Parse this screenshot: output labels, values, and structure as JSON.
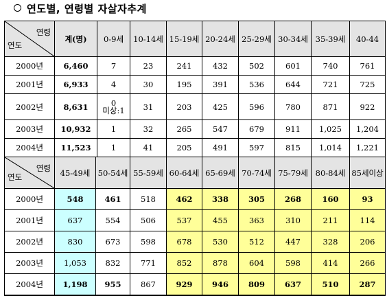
{
  "title": "연도별, 연령별 자살자추계",
  "table1": {
    "corner_top": "연령",
    "corner_bottom": "연도",
    "headers": [
      "계(명)",
      "0-9세",
      "10-14세",
      "15-19세",
      "20-24세",
      "25-29세",
      "30-34세",
      "35-39세",
      "40-44"
    ],
    "rows": [
      {
        "year": "2000년",
        "cells": [
          "6,460",
          "7",
          "23",
          "241",
          "432",
          "502",
          "601",
          "740",
          "761"
        ]
      },
      {
        "year": "2001년",
        "cells": [
          "6,933",
          "4",
          "30",
          "195",
          "391",
          "536",
          "644",
          "721",
          "725"
        ]
      },
      {
        "year": "2002년",
        "cells": [
          "8,631",
          "0",
          "31",
          "203",
          "425",
          "596",
          "780",
          "871",
          "922"
        ],
        "note": "미상:1"
      },
      {
        "year": "2003년",
        "cells": [
          "10,932",
          "1",
          "32",
          "265",
          "547",
          "679",
          "911",
          "1,025",
          "1,204"
        ]
      },
      {
        "year": "2004년",
        "cells": [
          "11,523",
          "1",
          "41",
          "205",
          "491",
          "597",
          "815",
          "1,014",
          "1,221"
        ]
      }
    ]
  },
  "table2": {
    "corner_top": "연령",
    "corner_bottom": "연도",
    "headers": [
      "45-49세",
      "50-54세",
      "55-59세",
      "60-64세",
      "65-69세",
      "70-74세",
      "75-79세",
      "80-84세",
      "85세이상"
    ],
    "rows": [
      {
        "year": "2000년",
        "cells": [
          "548",
          "461",
          "518",
          "462",
          "338",
          "305",
          "268",
          "160",
          "93"
        ]
      },
      {
        "year": "2001년",
        "cells": [
          "637",
          "554",
          "506",
          "537",
          "455",
          "363",
          "310",
          "211",
          "114"
        ]
      },
      {
        "year": "2002년",
        "cells": [
          "830",
          "673",
          "598",
          "678",
          "530",
          "512",
          "447",
          "328",
          "206"
        ]
      },
      {
        "year": "2003년",
        "cells": [
          "1,053",
          "832",
          "771",
          "852",
          "878",
          "604",
          "598",
          "414",
          "266"
        ]
      },
      {
        "year": "2004년",
        "cells": [
          "1,198",
          "955",
          "867",
          "929",
          "946",
          "809",
          "637",
          "510",
          "287"
        ]
      }
    ],
    "bold_cells": [
      [
        0,
        0
      ],
      [
        0,
        1
      ],
      [
        0,
        3
      ],
      [
        0,
        4
      ],
      [
        0,
        5
      ],
      [
        0,
        6
      ],
      [
        0,
        7
      ],
      [
        0,
        8
      ],
      [
        4,
        0
      ],
      [
        4,
        1
      ],
      [
        4,
        3
      ],
      [
        4,
        4
      ],
      [
        4,
        5
      ],
      [
        4,
        6
      ],
      [
        4,
        7
      ],
      [
        4,
        8
      ]
    ],
    "highlight": {
      "cyan_columns": [
        0
      ],
      "yellow_columns": [
        3,
        4,
        5,
        6,
        7,
        8
      ],
      "cyan_color": "#ccffff",
      "yellow_color": "#ffff99"
    }
  },
  "colors": {
    "header_background": "#e4e4e4"
  }
}
